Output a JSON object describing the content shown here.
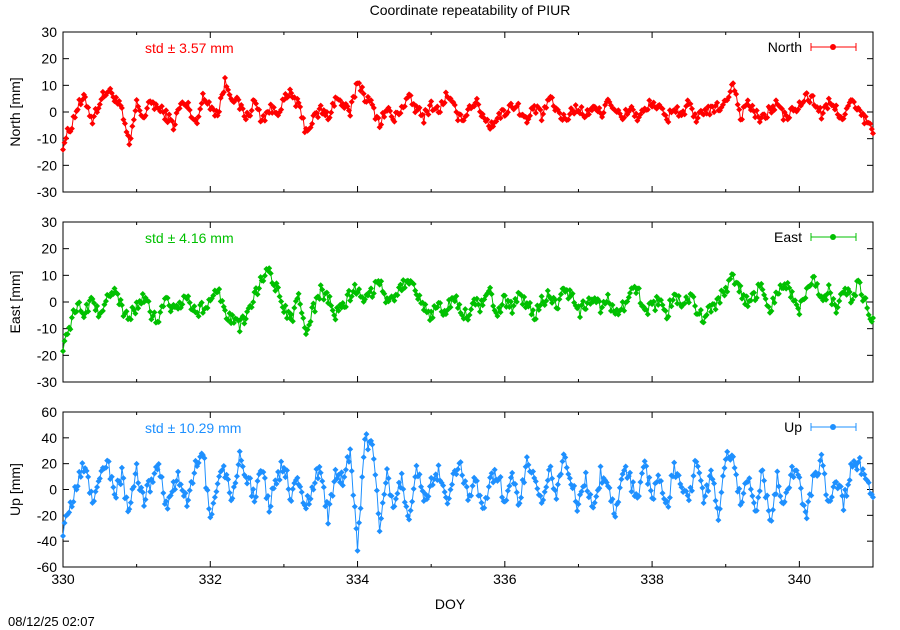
{
  "title": "Coordinate repeatability of PIUR",
  "timestamp": "08/12/25 02:07",
  "xlabel": "DOY",
  "x_ticks": [
    "330",
    "332",
    "334",
    "336",
    "338",
    "340"
  ],
  "chart_data": [
    {
      "type": "scatter",
      "name": "North",
      "ylabel": "North [mm]",
      "std_label": "std ± 3.57 mm",
      "color": "#ff0000",
      "xlim": [
        330,
        341
      ],
      "ylim": [
        -30,
        30
      ],
      "y_ticks": [
        "30",
        "20",
        "10",
        "0",
        "-10",
        "-20",
        "-30"
      ],
      "legend_position": "top-right",
      "std": 3.57,
      "series": [
        {
          "name": "North",
          "x": [
            330.0,
            330.1,
            330.2,
            330.3,
            330.4,
            330.5,
            330.6,
            330.7,
            330.8,
            330.9,
            331.0,
            331.1,
            331.2,
            331.3,
            331.4,
            331.5,
            331.6,
            331.7,
            331.8,
            331.9,
            332.0,
            332.1,
            332.2,
            332.3,
            332.4,
            332.5,
            332.6,
            332.7,
            332.8,
            332.9,
            333.0,
            333.1,
            333.2,
            333.3,
            333.4,
            333.5,
            333.6,
            333.7,
            333.8,
            333.9,
            334.0,
            334.1,
            334.2,
            334.3,
            334.4,
            334.5,
            334.6,
            334.7,
            334.8,
            334.9,
            335.0,
            335.1,
            335.2,
            335.3,
            335.4,
            335.5,
            335.6,
            335.7,
            335.8,
            335.9,
            336.0,
            336.1,
            336.2,
            336.3,
            336.4,
            336.5,
            336.6,
            336.7,
            336.8,
            336.9,
            337.0,
            337.1,
            337.2,
            337.3,
            337.4,
            337.5,
            337.6,
            337.7,
            337.8,
            337.9,
            338.0,
            338.1,
            338.2,
            338.3,
            338.4,
            338.5,
            338.6,
            338.7,
            338.8,
            338.9,
            339.0,
            339.1,
            339.2,
            339.3,
            339.4,
            339.5,
            339.6,
            339.7,
            339.8,
            339.9,
            340.0,
            340.1,
            340.2,
            340.3,
            340.4,
            340.5,
            340.6,
            340.7,
            340.8,
            340.9,
            341.0
          ],
          "y": [
            -12,
            -6,
            2,
            5,
            -3,
            4,
            8,
            6,
            0,
            -13,
            3,
            -2,
            4,
            1,
            -1,
            -5,
            3,
            2,
            -4,
            5,
            3,
            -1,
            11,
            6,
            2,
            -2,
            4,
            -3,
            1,
            0,
            4,
            7,
            2,
            -7,
            -3,
            1,
            -2,
            5,
            3,
            -1,
            12,
            6,
            2,
            -4,
            1,
            -3,
            2,
            5,
            1,
            -2,
            3,
            0,
            6,
            2,
            -3,
            1,
            4,
            -1,
            -5,
            -2,
            0,
            3,
            1,
            -4,
            2,
            -2,
            5,
            1,
            -3,
            0,
            2,
            -2,
            3,
            -1,
            5,
            1,
            -3,
            2,
            -2,
            0,
            4,
            1,
            -3,
            2,
            -1,
            3,
            -4,
            1,
            0,
            2,
            3,
            12,
            -2,
            4,
            -1,
            -3,
            1,
            3,
            -2,
            0,
            2,
            6,
            4,
            -1,
            3,
            1,
            -2,
            4,
            0,
            -3,
            -8
          ]
        }
      ]
    },
    {
      "type": "scatter",
      "name": "East",
      "ylabel": "East [mm]",
      "std_label": "std ± 4.16 mm",
      "color": "#00c000",
      "xlim": [
        330,
        341
      ],
      "ylim": [
        -30,
        30
      ],
      "y_ticks": [
        "30",
        "20",
        "10",
        "0",
        "-10",
        "-20",
        "-30"
      ],
      "legend_position": "top-right",
      "std": 4.16,
      "series": [
        {
          "name": "East",
          "x": [
            330.0,
            330.1,
            330.2,
            330.3,
            330.4,
            330.5,
            330.6,
            330.7,
            330.8,
            330.9,
            331.0,
            331.1,
            331.2,
            331.3,
            331.4,
            331.5,
            331.6,
            331.7,
            331.8,
            331.9,
            332.0,
            332.1,
            332.2,
            332.3,
            332.4,
            332.5,
            332.6,
            332.7,
            332.8,
            332.9,
            333.0,
            333.1,
            333.2,
            333.3,
            333.4,
            333.5,
            333.6,
            333.7,
            333.8,
            333.9,
            334.0,
            334.1,
            334.2,
            334.3,
            334.4,
            334.5,
            334.6,
            334.7,
            334.8,
            334.9,
            335.0,
            335.1,
            335.2,
            335.3,
            335.4,
            335.5,
            335.6,
            335.7,
            335.8,
            335.9,
            336.0,
            336.1,
            336.2,
            336.3,
            336.4,
            336.5,
            336.6,
            336.7,
            336.8,
            336.9,
            337.0,
            337.1,
            337.2,
            337.3,
            337.4,
            337.5,
            337.6,
            337.7,
            337.8,
            337.9,
            338.0,
            338.1,
            338.2,
            338.3,
            338.4,
            338.5,
            338.6,
            338.7,
            338.8,
            338.9,
            339.0,
            339.1,
            339.2,
            339.3,
            339.4,
            339.5,
            339.6,
            339.7,
            339.8,
            339.9,
            340.0,
            340.1,
            340.2,
            340.3,
            340.4,
            340.5,
            340.6,
            340.7,
            340.8,
            340.9,
            341.0
          ],
          "y": [
            -16,
            -8,
            -2,
            -4,
            2,
            -6,
            3,
            6,
            -3,
            -5,
            -2,
            1,
            -4,
            -8,
            2,
            -3,
            -1,
            3,
            -5,
            -2,
            1,
            4,
            -3,
            -7,
            -10,
            -4,
            2,
            9,
            12,
            5,
            -3,
            -7,
            1,
            -10,
            -3,
            4,
            1,
            -5,
            -2,
            3,
            5,
            2,
            4,
            8,
            1,
            3,
            6,
            9,
            2,
            -2,
            -5,
            -1,
            -4,
            2,
            -3,
            -6,
            0,
            -2,
            3,
            -4,
            1,
            -3,
            2,
            -1,
            -5,
            0,
            3,
            -2,
            4,
            2,
            -4,
            -1,
            2,
            -3,
            1,
            -6,
            -2,
            3,
            5,
            -4,
            -2,
            1,
            -5,
            3,
            -1,
            2,
            -2,
            -6,
            -3,
            1,
            5,
            9,
            4,
            -1,
            3,
            6,
            -2,
            2,
            7,
            3,
            -4,
            5,
            8,
            2,
            4,
            -2,
            5,
            1,
            7,
            -1,
            -6
          ]
        }
      ]
    },
    {
      "type": "scatter",
      "name": "Up",
      "ylabel": "Up [mm]",
      "std_label": "std ± 10.29 mm",
      "color": "#1e90ff",
      "xlim": [
        330,
        341
      ],
      "ylim": [
        -60,
        60
      ],
      "y_ticks": [
        "60",
        "40",
        "20",
        "0",
        "-20",
        "-40",
        "-60"
      ],
      "legend_position": "top-right",
      "std": 10.29,
      "series": [
        {
          "name": "Up",
          "x": [
            330.0,
            330.1,
            330.2,
            330.3,
            330.4,
            330.5,
            330.6,
            330.7,
            330.8,
            330.9,
            331.0,
            331.1,
            331.2,
            331.3,
            331.4,
            331.5,
            331.6,
            331.7,
            331.8,
            331.9,
            332.0,
            332.1,
            332.2,
            332.3,
            332.4,
            332.5,
            332.6,
            332.7,
            332.8,
            332.9,
            333.0,
            333.1,
            333.2,
            333.3,
            333.4,
            333.5,
            333.6,
            333.7,
            333.8,
            333.9,
            334.0,
            334.1,
            334.2,
            334.3,
            334.4,
            334.5,
            334.6,
            334.7,
            334.8,
            334.9,
            335.0,
            335.1,
            335.2,
            335.3,
            335.4,
            335.5,
            335.6,
            335.7,
            335.8,
            335.9,
            336.0,
            336.1,
            336.2,
            336.3,
            336.4,
            336.5,
            336.6,
            336.7,
            336.8,
            336.9,
            337.0,
            337.1,
            337.2,
            337.3,
            337.4,
            337.5,
            337.6,
            337.7,
            337.8,
            337.9,
            338.0,
            338.1,
            338.2,
            338.3,
            338.4,
            338.5,
            338.6,
            338.7,
            338.8,
            338.9,
            339.0,
            339.1,
            339.2,
            339.3,
            339.4,
            339.5,
            339.6,
            339.7,
            339.8,
            339.9,
            340.0,
            340.1,
            340.2,
            340.3,
            340.4,
            340.5,
            340.6,
            340.7,
            340.8,
            340.9,
            341.0
          ],
          "y": [
            -30,
            -15,
            5,
            20,
            -10,
            10,
            22,
            -5,
            12,
            -20,
            15,
            -8,
            6,
            18,
            -15,
            4,
            10,
            -12,
            20,
            30,
            -25,
            5,
            15,
            -10,
            32,
            8,
            -5,
            18,
            -12,
            6,
            22,
            -8,
            10,
            -15,
            5,
            18,
            -22,
            12,
            8,
            30,
            -45,
            38,
            35,
            -30,
            12,
            -15,
            8,
            -20,
            18,
            -10,
            5,
            15,
            -12,
            8,
            20,
            -5,
            10,
            -18,
            6,
            12,
            -8,
            15,
            -10,
            22,
            5,
            -12,
            18,
            -5,
            28,
            6,
            -15,
            10,
            -20,
            12,
            5,
            -18,
            15,
            8,
            -10,
            20,
            -6,
            12,
            -15,
            18,
            5,
            -10,
            22,
            -8,
            12,
            -18,
            25,
            28,
            -12,
            10,
            -20,
            15,
            -25,
            8,
            -15,
            18,
            5,
            -20,
            12,
            22,
            -15,
            8,
            -10,
            15,
            20,
            12,
            -6
          ]
        }
      ]
    }
  ]
}
